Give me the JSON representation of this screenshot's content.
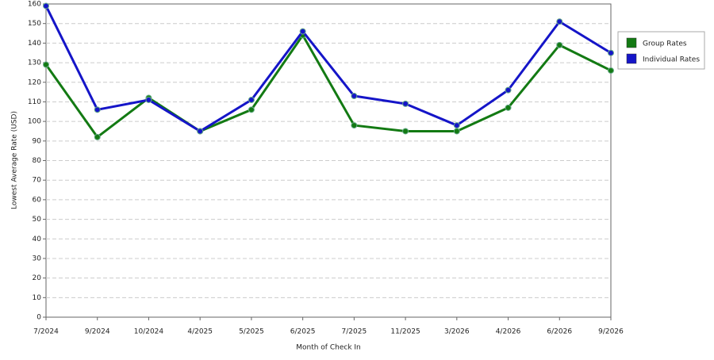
{
  "chart_data": {
    "type": "line",
    "x_label": "Month of Check In",
    "y_label": "Lowest Average Rate (USD)",
    "categories": [
      "7/2024",
      "9/2024",
      "10/2024",
      "4/2025",
      "5/2025",
      "6/2025",
      "7/2025",
      "11/2025",
      "3/2026",
      "4/2026",
      "6/2026",
      "9/2026"
    ],
    "series": [
      {
        "name": "Group Rates",
        "color": "#137a13",
        "values": [
          129,
          92,
          112,
          95,
          106,
          144,
          98,
          95,
          95,
          107,
          139,
          126
        ]
      },
      {
        "name": "Individual Rates",
        "color": "#1515c8",
        "values": [
          159,
          106,
          111,
          95,
          111,
          146,
          113,
          109,
          98,
          116,
          151,
          135
        ]
      }
    ],
    "ylim": [
      0,
      160
    ],
    "yticks": [
      0,
      10,
      20,
      30,
      40,
      50,
      60,
      70,
      80,
      90,
      100,
      110,
      120,
      130,
      140,
      150,
      160
    ],
    "grid": true,
    "legend": "right"
  }
}
